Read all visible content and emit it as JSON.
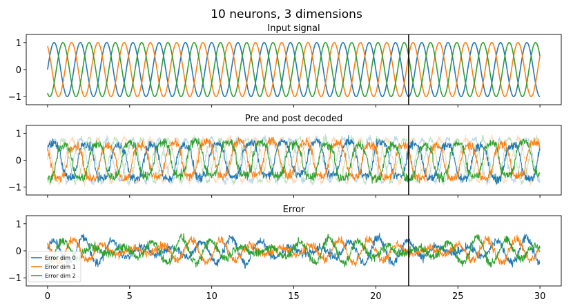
{
  "figure": {
    "title": "10 neurons, 3 dimensions"
  },
  "colors": {
    "dim0": "#1f77b4",
    "dim1": "#ff7f0e",
    "dim2": "#2ca02c"
  },
  "chart_data": [
    {
      "type": "line",
      "title": "Input signal",
      "xlabel": "",
      "ylabel": "",
      "xlim": [
        -1.3,
        31.3
      ],
      "ylim": [
        -1.3,
        1.3
      ],
      "xticks": [
        0,
        5,
        10,
        15,
        20,
        25,
        30
      ],
      "xtick_labels": [
        "0",
        "5",
        "10",
        "15",
        "20",
        "25",
        "30"
      ],
      "xtick_labels_visible": false,
      "yticks": [
        1,
        0,
        -1
      ],
      "ytick_labels": [
        "1",
        "0",
        "−1"
      ],
      "vline": 22,
      "series": [
        {
          "color": "#1f77b4",
          "style": "sine",
          "amplitude": 1,
          "period": 1.6,
          "phase": 0,
          "noise": 0
        },
        {
          "color": "#ff7f0e",
          "style": "sine",
          "amplitude": 1,
          "period": 1.6,
          "phase": 2.094,
          "noise": 0
        },
        {
          "color": "#2ca02c",
          "style": "sine",
          "amplitude": 1,
          "period": 1.6,
          "phase": 4.189,
          "noise": 0
        }
      ]
    },
    {
      "type": "line",
      "title": "Pre and post decoded",
      "xlabel": "",
      "ylabel": "",
      "xlim": [
        -1.3,
        31.3
      ],
      "ylim": [
        -1.3,
        1.3
      ],
      "xticks": [
        0,
        5,
        10,
        15,
        20,
        25,
        30
      ],
      "xtick_labels": [
        "0",
        "5",
        "10",
        "15",
        "20",
        "25",
        "30"
      ],
      "xtick_labels_visible": false,
      "yticks": [
        1,
        0,
        -1
      ],
      "ytick_labels": [
        "1",
        "0",
        "−1"
      ],
      "vline": 22,
      "series": [
        {
          "color": "#1f77b4",
          "style": "pre",
          "amplitude": 0.8,
          "period": 1.6,
          "phase": 0,
          "noise": 0.12,
          "alpha": 0.3
        },
        {
          "color": "#ff7f0e",
          "style": "pre",
          "amplitude": 0.8,
          "period": 1.6,
          "phase": 2.094,
          "noise": 0.12,
          "alpha": 0.3
        },
        {
          "color": "#2ca02c",
          "style": "pre",
          "amplitude": 0.8,
          "period": 1.6,
          "phase": 4.189,
          "noise": 0.12,
          "alpha": 0.3
        },
        {
          "color": "#1f77b4",
          "style": "post",
          "amplitude": 0.75,
          "period": 2.0,
          "phase": 0.5,
          "noise": 0.15
        },
        {
          "color": "#ff7f0e",
          "style": "post",
          "amplitude": 0.75,
          "period": 2.0,
          "phase": 2.6,
          "noise": 0.15
        },
        {
          "color": "#2ca02c",
          "style": "post",
          "amplitude": 0.75,
          "period": 2.0,
          "phase": 4.7,
          "noise": 0.15
        }
      ]
    },
    {
      "type": "line",
      "title": "Error",
      "xlabel": "",
      "ylabel": "",
      "xlim": [
        -1.3,
        31.3
      ],
      "ylim": [
        -1.3,
        1.3
      ],
      "xticks": [
        0,
        5,
        10,
        15,
        20,
        25,
        30
      ],
      "xtick_labels": [
        "0",
        "5",
        "10",
        "15",
        "20",
        "25",
        "30"
      ],
      "xtick_labels_visible": true,
      "yticks": [
        1,
        0,
        -1
      ],
      "ytick_labels": [
        "1",
        "0",
        "−1"
      ],
      "vline": 22,
      "legend": "lower-left",
      "series": [
        {
          "name": "Error dim 0",
          "color": "#1f77b4",
          "style": "error",
          "amplitude": 0.5,
          "period": 1.8,
          "phase": 0.3,
          "noise": 0.14
        },
        {
          "name": "Error dim 1",
          "color": "#ff7f0e",
          "style": "error",
          "amplitude": 0.45,
          "period": 1.8,
          "phase": 2.4,
          "noise": 0.14
        },
        {
          "name": "Error dim 2",
          "color": "#2ca02c",
          "style": "error",
          "amplitude": 0.5,
          "period": 1.8,
          "phase": 4.5,
          "noise": 0.14
        }
      ]
    }
  ]
}
